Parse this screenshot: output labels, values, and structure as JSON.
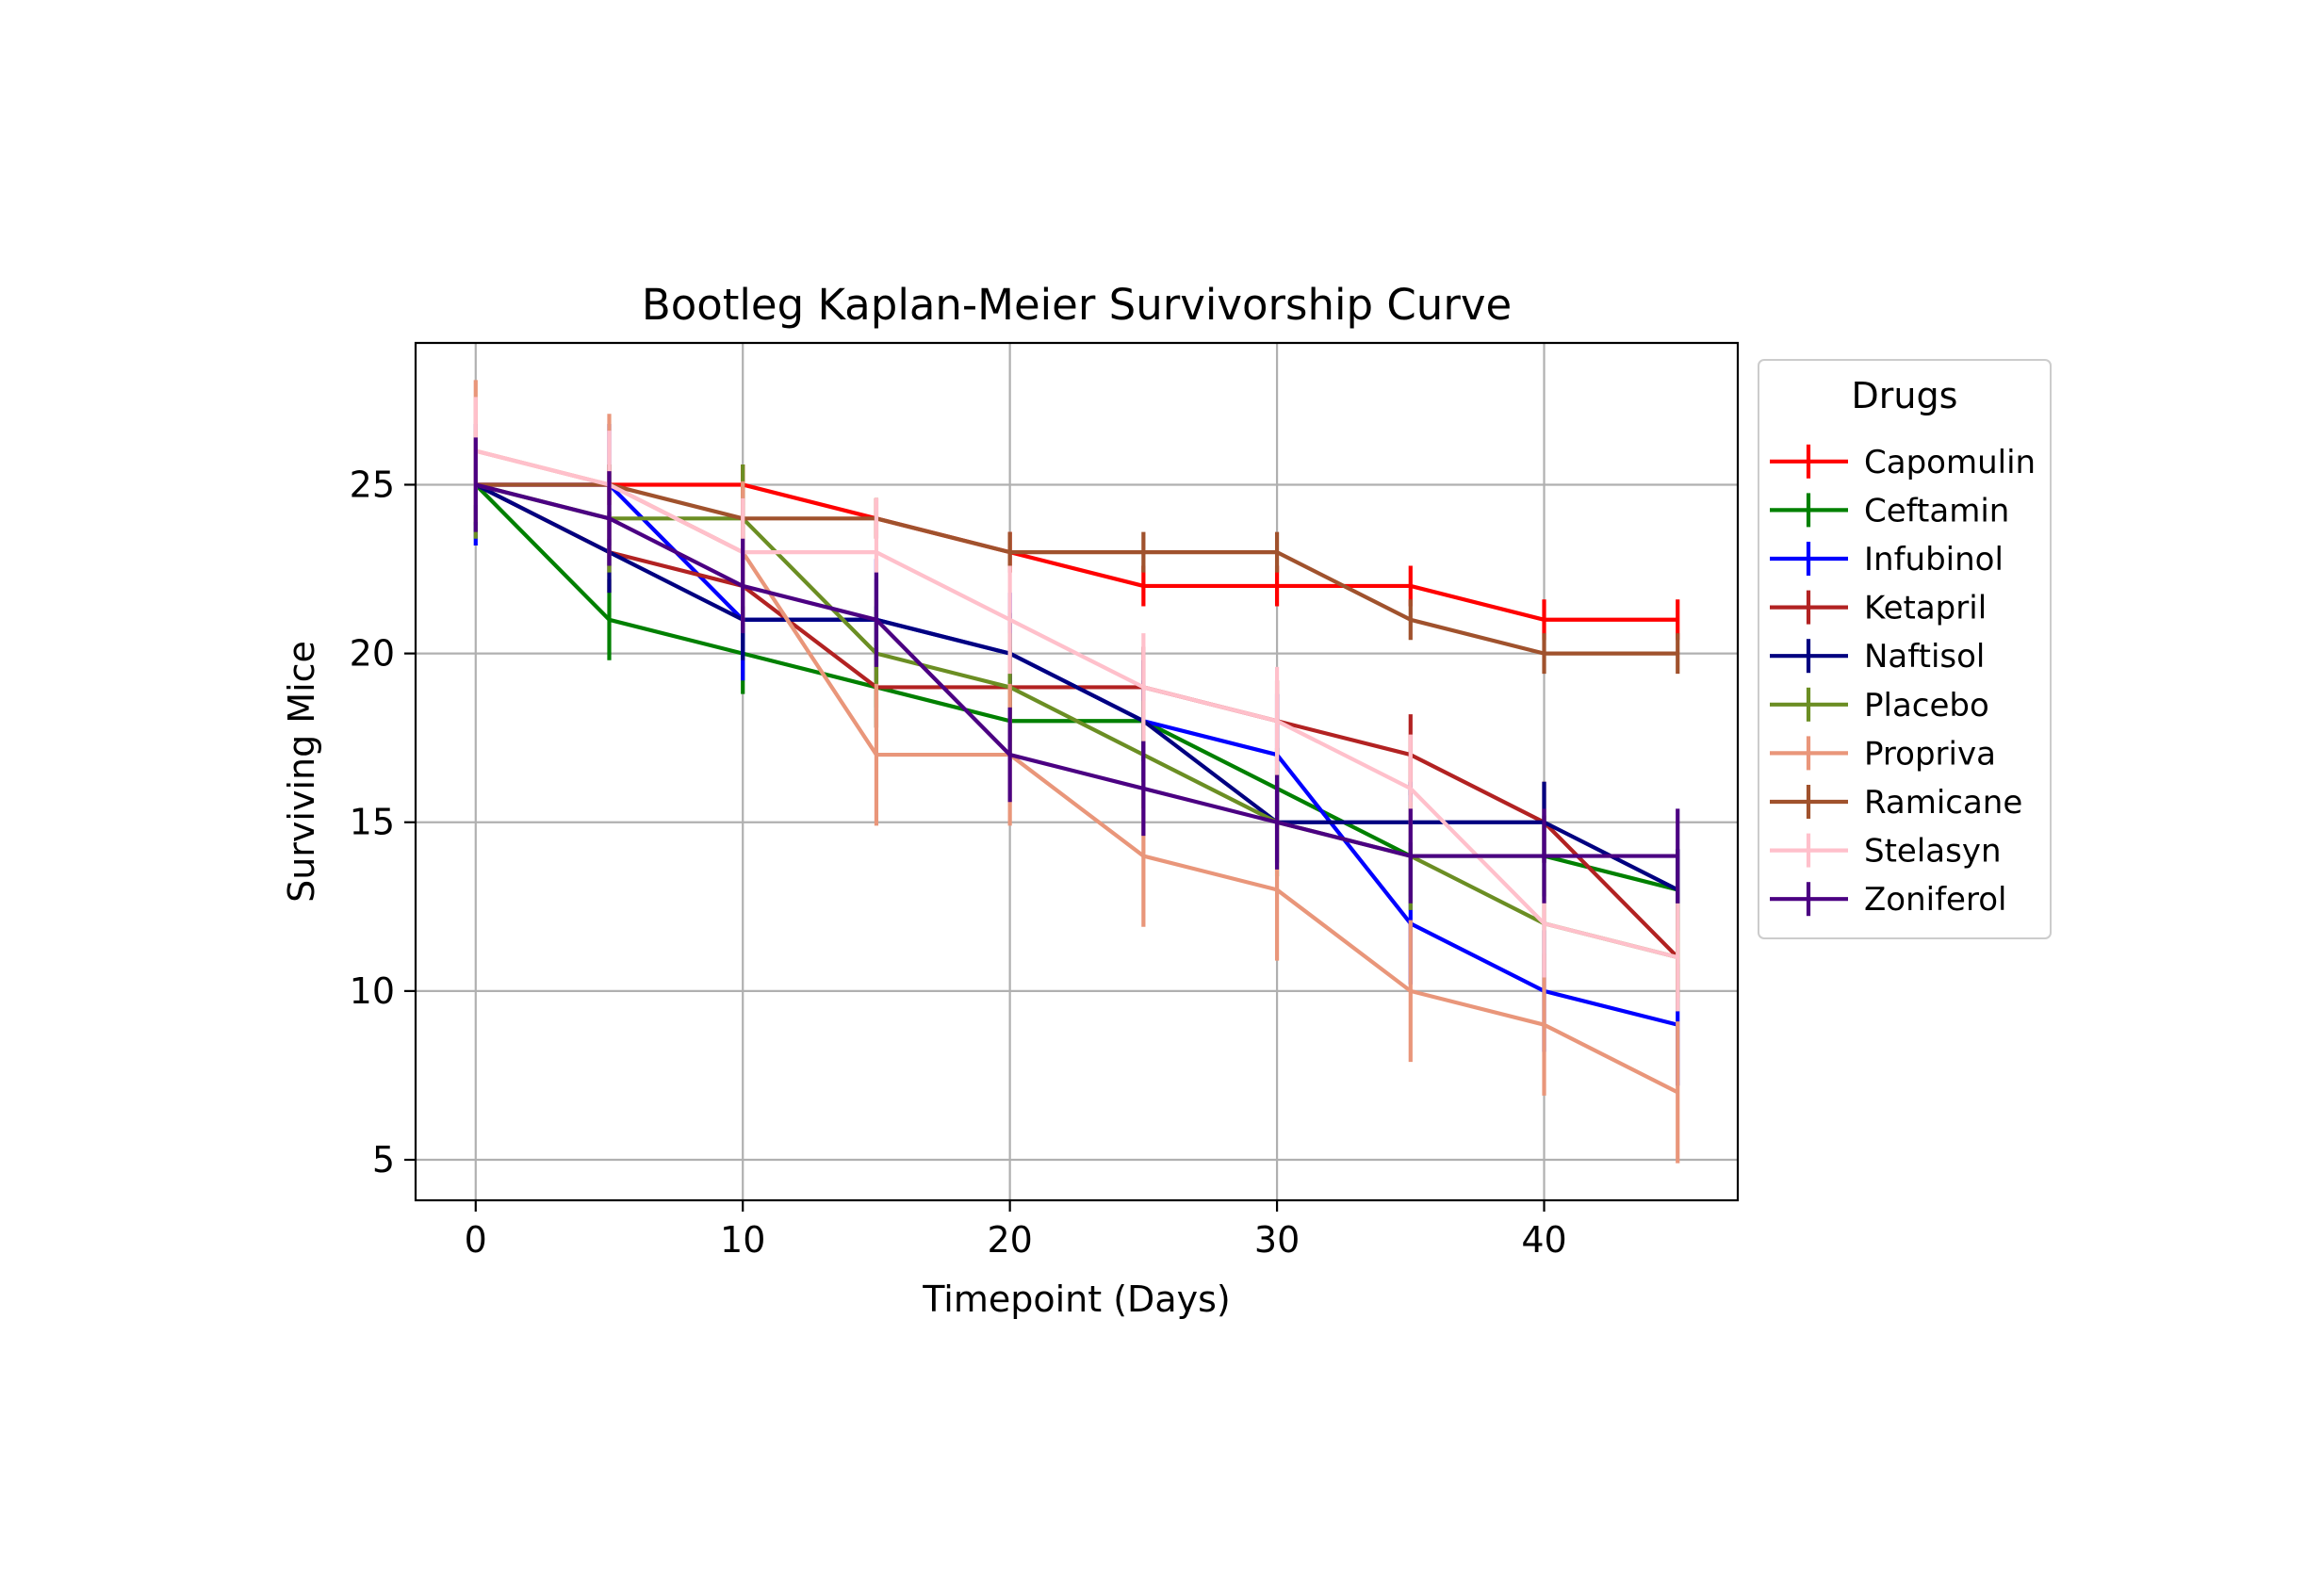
{
  "chart_data": {
    "type": "line",
    "title": "Bootleg Kaplan-Meier Survivorship Curve",
    "xlabel": "Timepoint (Days)",
    "ylabel": "Surviving Mice",
    "xlim": [
      -2.25,
      47.25
    ],
    "ylim": [
      3.8,
      29.2
    ],
    "xticks": [
      0,
      10,
      20,
      30,
      40
    ],
    "yticks": [
      5,
      10,
      15,
      20,
      25
    ],
    "grid": true,
    "legend_position": "outside-right",
    "legend_title": "Drugs",
    "x": [
      0,
      5,
      10,
      15,
      20,
      25,
      30,
      35,
      40,
      45
    ],
    "series": [
      {
        "name": "Capomulin",
        "color": "#ff0000",
        "values": [
          25,
          25,
          25,
          24,
          23,
          22,
          22,
          22,
          21,
          21
        ],
        "errors": [
          0.6,
          0.6,
          0.6,
          0.6,
          0.6,
          0.6,
          0.6,
          0.6,
          0.6,
          0.6
        ]
      },
      {
        "name": "Ceftamin",
        "color": "#008000",
        "values": [
          25,
          21,
          20,
          19,
          18,
          18,
          16,
          14,
          14,
          13
        ],
        "errors": [
          1.2,
          1.2,
          1.2,
          1.2,
          1.2,
          1.2,
          1.2,
          1.2,
          1.2,
          1.2
        ]
      },
      {
        "name": "Infubinol",
        "color": "#0000ff",
        "values": [
          25,
          25,
          21,
          21,
          20,
          18,
          17,
          12,
          10,
          9
        ],
        "errors": [
          1.8,
          1.8,
          1.8,
          1.8,
          1.8,
          1.8,
          1.8,
          1.8,
          1.8,
          1.8
        ]
      },
      {
        "name": "Ketapril",
        "color": "#b22222",
        "values": [
          25,
          23,
          22,
          19,
          19,
          19,
          18,
          17,
          15,
          11
        ],
        "errors": [
          1.2,
          1.2,
          1.2,
          1.2,
          1.2,
          1.2,
          1.2,
          1.2,
          1.2,
          1.2
        ]
      },
      {
        "name": "Naftisol",
        "color": "#000080",
        "values": [
          25,
          23,
          21,
          21,
          20,
          18,
          15,
          15,
          15,
          13
        ],
        "errors": [
          1.2,
          1.2,
          1.2,
          1.2,
          1.2,
          1.2,
          1.2,
          1.2,
          1.2,
          1.2
        ]
      },
      {
        "name": "Placebo",
        "color": "#6b8e23",
        "values": [
          25,
          24,
          24,
          20,
          19,
          17,
          15,
          14,
          12,
          11
        ],
        "errors": [
          1.6,
          1.6,
          1.6,
          1.6,
          1.6,
          1.6,
          1.6,
          1.6,
          1.6,
          1.6
        ]
      },
      {
        "name": "Propriva",
        "color": "#e9967a",
        "values": [
          26,
          25,
          23,
          17,
          17,
          14,
          13,
          10,
          9,
          7
        ],
        "errors": [
          2.1,
          2.1,
          2.1,
          2.1,
          2.1,
          2.1,
          2.1,
          2.1,
          2.1,
          2.1
        ]
      },
      {
        "name": "Ramicane",
        "color": "#a0522d",
        "values": [
          25,
          25,
          24,
          24,
          23,
          23,
          23,
          21,
          20,
          20
        ],
        "errors": [
          0.6,
          0.6,
          0.6,
          0.6,
          0.6,
          0.6,
          0.6,
          0.6,
          0.6,
          0.6
        ]
      },
      {
        "name": "Stelasyn",
        "color": "#ffc0cb",
        "values": [
          26,
          25,
          23,
          23,
          21,
          19,
          18,
          16,
          12,
          11
        ],
        "errors": [
          1.6,
          1.6,
          1.6,
          1.6,
          1.6,
          1.6,
          1.6,
          1.6,
          1.6,
          1.6
        ]
      },
      {
        "name": "Zoniferol",
        "color": "#4b0082",
        "values": [
          25,
          24,
          22,
          21,
          17,
          16,
          15,
          14,
          14,
          14
        ],
        "errors": [
          1.4,
          1.4,
          1.4,
          1.4,
          1.4,
          1.4,
          1.4,
          1.4,
          1.4,
          1.4
        ]
      }
    ]
  }
}
